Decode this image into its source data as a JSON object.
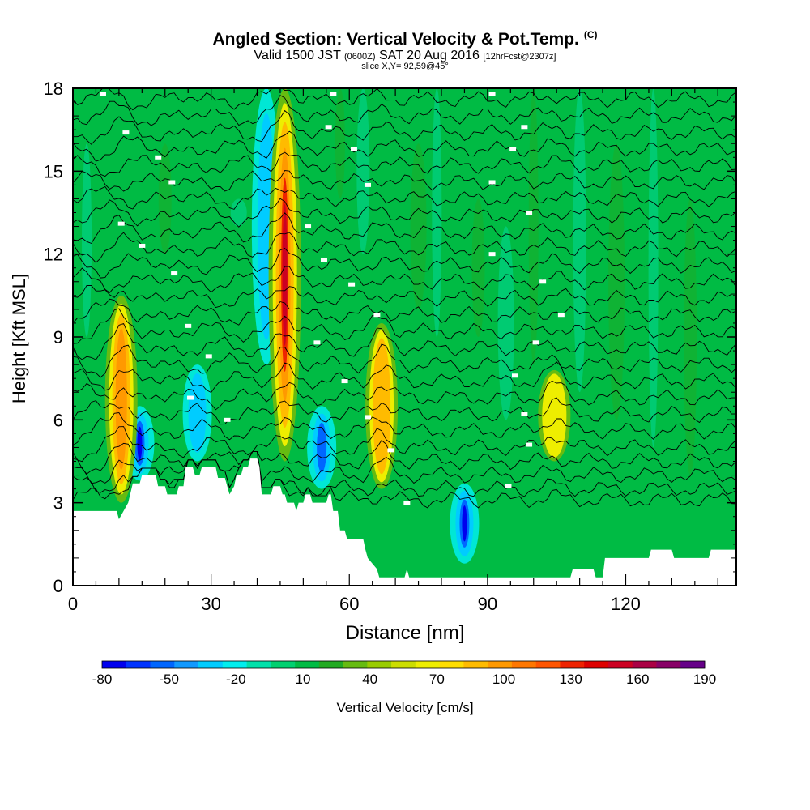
{
  "title": "Angled Section: Vertical Velocity & Pot.Temp.",
  "title_mark": "(C)",
  "valid": {
    "prefix": "Valid 1500 JST",
    "utc": "(0600Z)",
    "date": "SAT 20 Aug 2016",
    "forecast": "[12hrFcst@2307z]"
  },
  "slice": "slice X,Y= 92,59@45°",
  "colorbar": {
    "label": "Vertical Velocity [cm/s]",
    "tick_labels": [
      "-80",
      "-50",
      "-20",
      "10",
      "40",
      "70",
      "100",
      "130",
      "160",
      "190"
    ],
    "colors": [
      "#0000ee",
      "#0033ff",
      "#0066ff",
      "#1199ff",
      "#00ccff",
      "#00eeee",
      "#00e0aa",
      "#00d070",
      "#00bb44",
      "#22aa22",
      "#66bb11",
      "#99cc00",
      "#ccdd00",
      "#eeee00",
      "#ffdd00",
      "#ffbb00",
      "#ff9900",
      "#ff7700",
      "#ff5500",
      "#ee2200",
      "#dd0000",
      "#cc0022",
      "#aa0044",
      "#880066",
      "#660088"
    ]
  },
  "chart_data": {
    "type": "heatmap",
    "description_fields": "x = distance along section (nm), y = height (Kft MSL), filled contours = vertical velocity (cm/s), black lines = potential temperature isentropes",
    "xlabel": "Distance [nm]",
    "ylabel": "Height [Kft MSL]",
    "xlim": [
      0,
      144
    ],
    "ylim": [
      0,
      18
    ],
    "x_ticks": [
      0,
      30,
      60,
      90,
      120
    ],
    "y_ticks": [
      0,
      3,
      6,
      9,
      12,
      15,
      18
    ],
    "background_velocity": 10,
    "updrafts": [
      {
        "x": 10.5,
        "ybot": 3.0,
        "ytop": 10.5,
        "peak_velocity": 110
      },
      {
        "x": 46.0,
        "ybot": 4.5,
        "ytop": 18.0,
        "peak_velocity": 170
      },
      {
        "x": 67.0,
        "ybot": 3.5,
        "ytop": 9.5,
        "peak_velocity": 100
      },
      {
        "x": 104.5,
        "ybot": 4.5,
        "ytop": 7.8,
        "peak_velocity": 70
      }
    ],
    "downdrafts": [
      {
        "x": 14.5,
        "ybot": 3.8,
        "ytop": 6.5,
        "peak_velocity": -75
      },
      {
        "x": 27.0,
        "ybot": 4.5,
        "ytop": 8.0,
        "peak_velocity": -40
      },
      {
        "x": 42.0,
        "ybot": 8.0,
        "ytop": 18.0,
        "peak_velocity": -25
      },
      {
        "x": 54.0,
        "ybot": 3.5,
        "ytop": 6.5,
        "peak_velocity": -60
      },
      {
        "x": 85.0,
        "ybot": 0.8,
        "ytop": 3.7,
        "peak_velocity": -80
      }
    ],
    "terrain": [
      [
        0,
        2.7
      ],
      [
        9.5,
        2.7
      ],
      [
        10,
        2.4
      ],
      [
        11,
        2.7
      ],
      [
        12,
        3.0
      ],
      [
        13,
        3.7
      ],
      [
        14.5,
        3.7
      ],
      [
        15,
        4.0
      ],
      [
        18,
        4.0
      ],
      [
        18.5,
        3.6
      ],
      [
        20,
        3.6
      ],
      [
        20.5,
        3.3
      ],
      [
        22.5,
        3.3
      ],
      [
        23,
        3.6
      ],
      [
        24,
        3.6
      ],
      [
        24.5,
        4.3
      ],
      [
        26,
        4.3
      ],
      [
        26.5,
        4.0
      ],
      [
        27.5,
        4.0
      ],
      [
        28,
        4.3
      ],
      [
        31,
        4.3
      ],
      [
        31.5,
        3.9
      ],
      [
        33,
        3.9
      ],
      [
        33.5,
        3.6
      ],
      [
        34,
        3.3
      ],
      [
        35,
        3.6
      ],
      [
        35.5,
        4.0
      ],
      [
        36.5,
        4.0
      ],
      [
        37,
        4.3
      ],
      [
        38,
        4.3
      ],
      [
        38.5,
        4.6
      ],
      [
        40,
        4.6
      ],
      [
        40.5,
        4.3
      ],
      [
        41,
        3.3
      ],
      [
        43,
        3.3
      ],
      [
        43.5,
        3.6
      ],
      [
        45,
        3.6
      ],
      [
        45.5,
        3.3
      ],
      [
        46,
        3.3
      ],
      [
        46.5,
        3.0
      ],
      [
        48,
        3.0
      ],
      [
        48.5,
        2.7
      ],
      [
        49,
        3.0
      ],
      [
        50,
        3.0
      ],
      [
        50.5,
        3.3
      ],
      [
        51.5,
        3.3
      ],
      [
        52,
        3.0
      ],
      [
        55,
        3.0
      ],
      [
        55.5,
        3.3
      ],
      [
        56,
        3.3
      ],
      [
        56.5,
        2.7
      ],
      [
        57.5,
        2.7
      ],
      [
        58,
        2.0
      ],
      [
        59,
        2.0
      ],
      [
        59.5,
        1.7
      ],
      [
        63,
        1.7
      ],
      [
        63.5,
        1.3
      ],
      [
        64,
        1.0
      ],
      [
        65,
        0.8
      ],
      [
        66,
        0.6
      ],
      [
        66.5,
        0.3
      ],
      [
        72,
        0.3
      ],
      [
        72.5,
        0.6
      ],
      [
        73,
        0.3
      ],
      [
        108,
        0.3
      ],
      [
        108.5,
        0.6
      ],
      [
        113,
        0.6
      ],
      [
        113.5,
        0.3
      ],
      [
        115,
        0.3
      ],
      [
        115.5,
        1.0
      ],
      [
        125,
        1.0
      ],
      [
        125.5,
        1.3
      ],
      [
        130,
        1.3
      ],
      [
        130.5,
        1.0
      ],
      [
        138,
        1.0
      ],
      [
        138.5,
        1.3
      ],
      [
        144,
        1.3
      ]
    ],
    "isentropes": {
      "count": 26,
      "y_base": [
        3.1,
        3.5,
        4.0,
        4.5,
        5.0,
        5.6,
        6.2,
        6.8,
        7.4,
        8.0,
        8.6,
        9.2,
        9.8,
        10.4,
        11.0,
        11.6,
        12.2,
        12.8,
        13.4,
        14.0,
        14.6,
        15.2,
        15.8,
        16.4,
        17.0,
        17.6
      ]
    },
    "contour_labels": [
      [
        6.5,
        17.8
      ],
      [
        11.5,
        16.4
      ],
      [
        18.5,
        15.5
      ],
      [
        21.5,
        14.6
      ],
      [
        10.5,
        13.1
      ],
      [
        15,
        12.3
      ],
      [
        22,
        11.3
      ],
      [
        25,
        9.4
      ],
      [
        29.5,
        8.3
      ],
      [
        25.5,
        6.8
      ],
      [
        33.5,
        6.0
      ],
      [
        56.5,
        17.8
      ],
      [
        55.5,
        16.6
      ],
      [
        61,
        15.8
      ],
      [
        64,
        14.5
      ],
      [
        51,
        13.0
      ],
      [
        54.5,
        11.8
      ],
      [
        60.5,
        10.9
      ],
      [
        66,
        9.8
      ],
      [
        53,
        8.8
      ],
      [
        59,
        7.4
      ],
      [
        64,
        6.1
      ],
      [
        69,
        4.9
      ],
      [
        72.5,
        3.0
      ],
      [
        91,
        17.8
      ],
      [
        98,
        16.6
      ],
      [
        95.5,
        15.8
      ],
      [
        91,
        14.6
      ],
      [
        99,
        13.5
      ],
      [
        91,
        12.0
      ],
      [
        102,
        11.0
      ],
      [
        106,
        9.8
      ],
      [
        100.5,
        8.8
      ],
      [
        96,
        7.6
      ],
      [
        98,
        6.2
      ],
      [
        99,
        5.1
      ],
      [
        94.5,
        3.6
      ]
    ]
  }
}
